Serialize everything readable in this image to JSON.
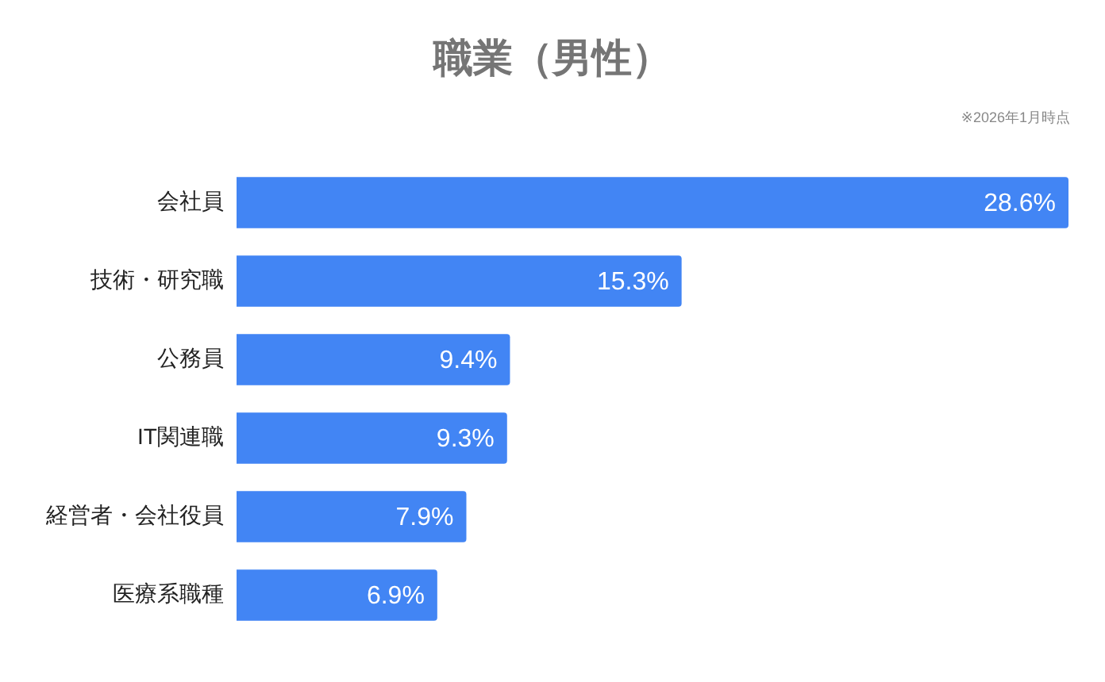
{
  "chart_data": {
    "type": "bar",
    "orientation": "horizontal",
    "title": "職業（男性）",
    "annotations": [
      "※2026年1月時点"
    ],
    "categories": [
      "会社員",
      "技術・研究職",
      "公務員",
      "IT関連職",
      "経営者・会社役員",
      "医療系職種"
    ],
    "values": [
      28.6,
      15.3,
      9.4,
      9.3,
      7.9,
      6.9
    ],
    "value_labels": [
      "28.6%",
      "15.3%",
      "9.4%",
      "9.3%",
      "7.9%",
      "6.9%"
    ],
    "color": "#4285f4",
    "tick_labels": "y"
  }
}
